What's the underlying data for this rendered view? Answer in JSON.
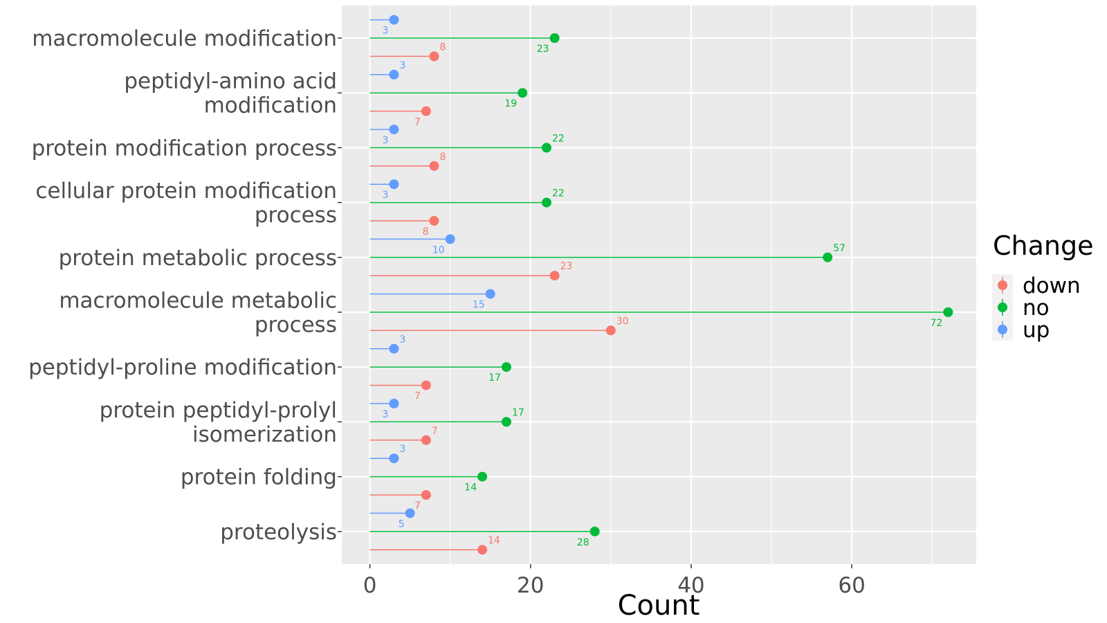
{
  "chart_data": {
    "type": "lollipop",
    "xlabel": "Count",
    "ylabel": "",
    "xlim": [
      -3.5,
      75.5
    ],
    "xticks": [
      0,
      20,
      40,
      60
    ],
    "grid": true,
    "legend": {
      "title": "Change",
      "position": "right",
      "entries": [
        "down",
        "no",
        "up"
      ]
    },
    "colors": {
      "down": "#F8766D",
      "no": "#00BA38",
      "up": "#619CFF"
    },
    "categories": [
      [
        "macromolecule modification"
      ],
      [
        "peptidyl-amino acid",
        "modification"
      ],
      [
        "protein modification process"
      ],
      [
        "cellular protein modification",
        "process"
      ],
      [
        "protein metabolic process"
      ],
      [
        "macromolecule metabolic",
        "process"
      ],
      [
        "peptidyl-proline modification"
      ],
      [
        "protein peptidyl-prolyl",
        "isomerization"
      ],
      [
        "protein folding"
      ],
      [
        "proteolysis"
      ]
    ],
    "series": [
      {
        "name": "down",
        "values": [
          8,
          7,
          8,
          8,
          23,
          30,
          7,
          7,
          7,
          14
        ],
        "labels": [
          "8",
          "7",
          "8",
          "8",
          "23",
          "30",
          "7",
          "7",
          "7",
          "14"
        ],
        "label_side": [
          "above",
          "below",
          "above",
          "below",
          "above",
          "above",
          "below",
          "above",
          "below",
          "above"
        ]
      },
      {
        "name": "no",
        "values": [
          23,
          19,
          22,
          22,
          57,
          72,
          17,
          17,
          14,
          28
        ],
        "labels": [
          "23",
          "19",
          "22",
          "22",
          "57",
          "72",
          "17",
          "17",
          "14",
          "28"
        ],
        "label_side": [
          "below",
          "below",
          "above",
          "above",
          "above",
          "below",
          "below",
          "above",
          "below",
          "below"
        ]
      },
      {
        "name": "up",
        "values": [
          3,
          3,
          3,
          3,
          10,
          15,
          3,
          3,
          3,
          5
        ],
        "labels": [
          "3",
          "3",
          "3",
          "3",
          "10",
          "15",
          "3",
          "3",
          "3",
          "5"
        ],
        "label_side": [
          "below",
          "above",
          "below",
          "below",
          "below",
          "below",
          "above",
          "below",
          "above",
          "below"
        ]
      }
    ]
  }
}
